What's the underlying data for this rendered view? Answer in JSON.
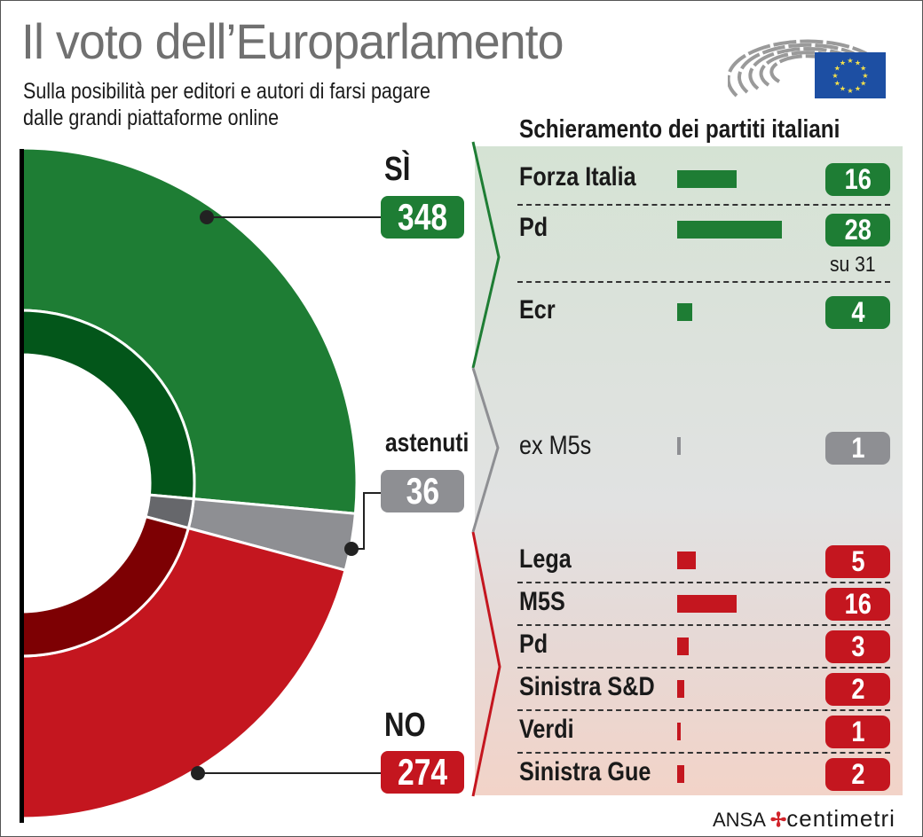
{
  "header": {
    "title": "Il voto dell’Europarlamento",
    "subtitle_line1": "Sulla posibilità per editori e autori di farsi pagare",
    "subtitle_line2": "dalle grandi piattaforme online",
    "section_title": "Schieramento dei partiti italiani"
  },
  "icons": {
    "parliament": "european-parliament-hemicycle-icon",
    "flag": "eu-flag-icon"
  },
  "colors": {
    "yes": "#1e7d34",
    "yes_dark": "#03561a",
    "abstain": "#8e8f93",
    "abstain_dark": "#66676b",
    "no": "#c4161f",
    "no_dark": "#7d0003"
  },
  "chart_data": {
    "type": "pie",
    "title": "Il voto dell’Europarlamento",
    "subtitle": "Sulla posibilità per editori e autori di farsi pagare dalle grandi piattaforme online",
    "shape": "half-donut",
    "categories": [
      "SÌ",
      "astenuti",
      "NO"
    ],
    "values": [
      348,
      36,
      274
    ],
    "colors": [
      "#1e7d34",
      "#8e8f93",
      "#c4161f"
    ],
    "party_breakdown": {
      "title": "Schieramento dei partiti italiani",
      "groups": [
        {
          "vote": "SÌ",
          "color": "#1e7d34",
          "parties": [
            {
              "name": "Forza Italia",
              "value": 16
            },
            {
              "name": "Pd",
              "value": 28,
              "note": "su 31"
            },
            {
              "name": "Ecr",
              "value": 4
            }
          ]
        },
        {
          "vote": "astenuti",
          "color": "#8e8f93",
          "parties": [
            {
              "name": "ex M5s",
              "value": 1
            }
          ]
        },
        {
          "vote": "NO",
          "color": "#c4161f",
          "parties": [
            {
              "name": "Lega",
              "value": 5
            },
            {
              "name": "M5S",
              "value": 16
            },
            {
              "name": "Pd",
              "value": 3
            },
            {
              "name": "Sinistra S&D",
              "value": 2
            },
            {
              "name": "Verdi",
              "value": 1
            },
            {
              "name": "Sinistra Gue",
              "value": 2
            }
          ]
        }
      ]
    }
  },
  "votes": {
    "yes_label": "SÌ",
    "yes_value": "348",
    "abstain_label": "astenuti",
    "abstain_value": "36",
    "no_label": "NO",
    "no_value": "274"
  },
  "rows": {
    "fi_label": "Forza Italia",
    "fi_value": "16",
    "pd_yes_label": "Pd",
    "pd_yes_value": "28",
    "pd_yes_note": "su 31",
    "ecr_label": "Ecr",
    "ecr_value": "4",
    "exm5s_label": "ex M5s",
    "exm5s_value": "1",
    "lega_label": "Lega",
    "lega_value": "5",
    "m5s_label": "M5S",
    "m5s_value": "16",
    "pd_no_label": "Pd",
    "pd_no_value": "3",
    "sd_label": "Sinistra S&D",
    "sd_value": "2",
    "verdi_label": "Verdi",
    "verdi_value": "1",
    "gue_label": "Sinistra Gue",
    "gue_value": "2"
  },
  "footer": {
    "agency": "ANSA",
    "brand": "centimetri"
  }
}
